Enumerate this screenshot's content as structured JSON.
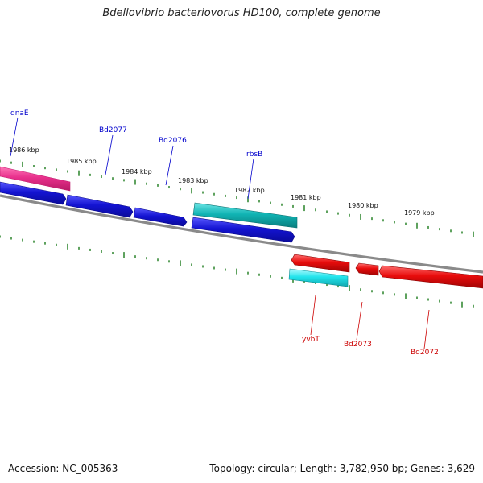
{
  "title": "Bdellovibrio bacteriovorus HD100, complete genome",
  "footer": {
    "accession": "Accession: NC_005363",
    "stats": "Topology: circular; Length: 3,782,950 bp; Genes: 3,629"
  },
  "colors": {
    "backbone": "#888888",
    "tick": "#1a7a1a",
    "forward_label": "#0000cc",
    "reverse_label": "#cc0000",
    "blue_gene": "#1414d2",
    "magenta_gene": "#e8308c",
    "cyan_gene": "#11b4b4",
    "light_cyan_gene": "#22e4ec",
    "red_gene": "#e80c0c"
  },
  "kbp_labels": [
    "1986 kbp",
    "1985 kbp",
    "1984 kbp",
    "1983 kbp",
    "1982 kbp",
    "1981 kbp",
    "1980 kbp",
    "1979 kbp"
  ],
  "gene_labels": {
    "forward": [
      "dnaE",
      "Bd2077",
      "Bd2076",
      "rbsB"
    ],
    "reverse": [
      "yvbT",
      "Bd2073",
      "Bd2072"
    ]
  }
}
